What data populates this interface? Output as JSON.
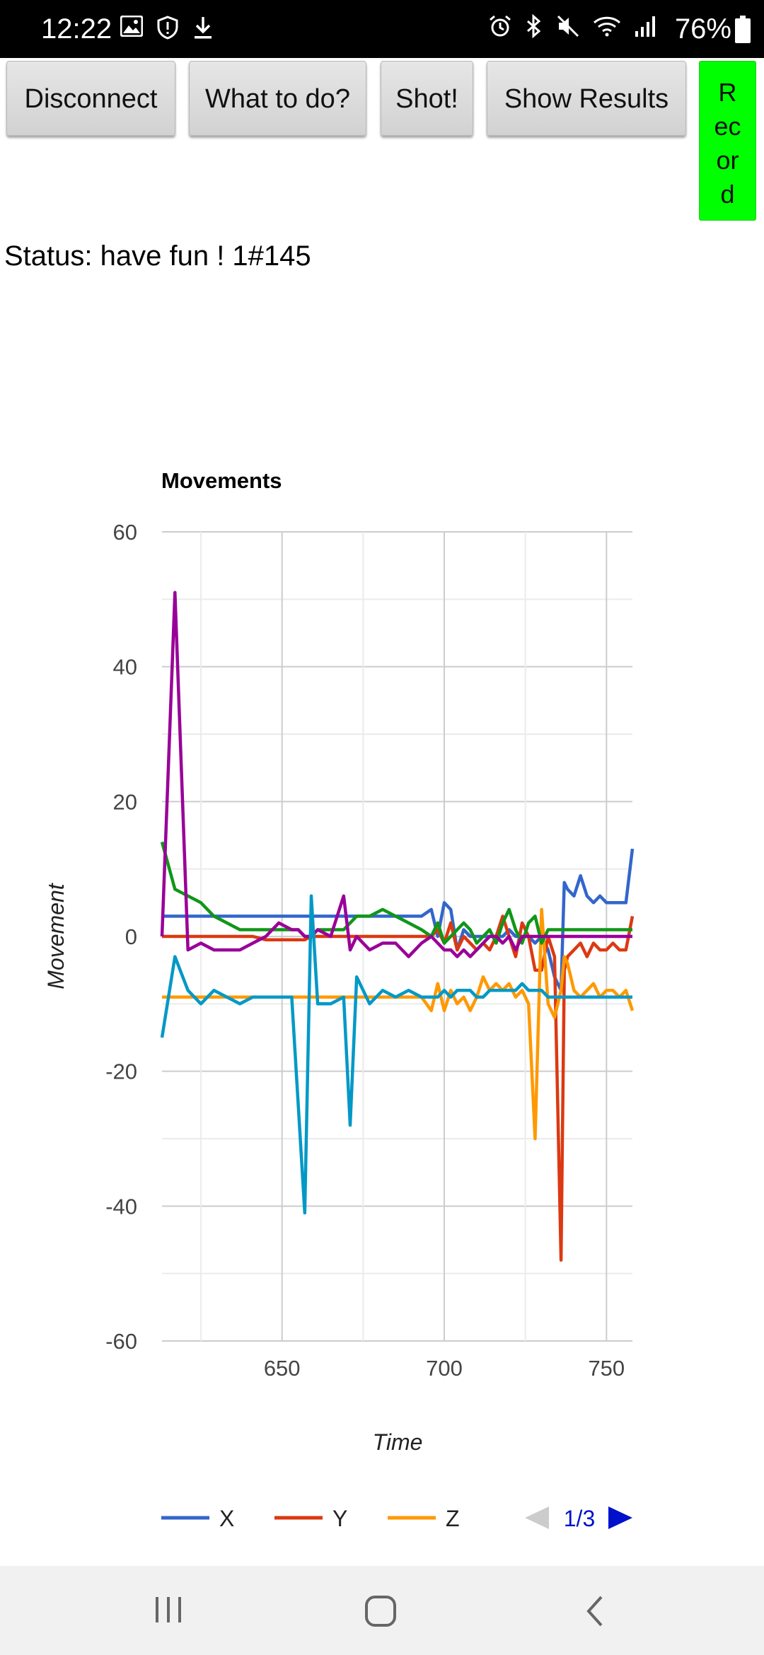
{
  "status_bar": {
    "time": "12:22",
    "battery": "76%",
    "left_icons": [
      "image-icon",
      "shield-icon",
      "download-icon"
    ],
    "right_icons": [
      "alarm-icon",
      "bluetooth-icon",
      "mute-icon",
      "wifi-icon",
      "signal-icon",
      "battery-icon"
    ]
  },
  "toolbar": {
    "disconnect_label": "Disconnect",
    "whattodo_label": "What to do?",
    "shot_label": "Shot!",
    "results_label": "Show Results",
    "record_label": "R\nec\nor\nd",
    "record_color": "#00ff00"
  },
  "status": {
    "text": "Status: have fun ! 1#145"
  },
  "chart_data": {
    "type": "line",
    "title": "Movements",
    "xlabel": "Time",
    "ylabel": "Movement",
    "xlim": [
      613,
      758
    ],
    "ylim": [
      -60,
      60
    ],
    "x_ticks": [
      650,
      700,
      750
    ],
    "y_ticks": [
      60,
      40,
      20,
      0,
      -20,
      -40,
      -60
    ],
    "grid": true,
    "legend": {
      "position": "bottom",
      "visible_entries": [
        "X",
        "Y",
        "Z"
      ],
      "page": "1/3"
    },
    "x": [
      613,
      617,
      621,
      625,
      629,
      633,
      637,
      641,
      645,
      649,
      653,
      655,
      657,
      659,
      661,
      665,
      669,
      671,
      673,
      677,
      681,
      685,
      689,
      693,
      696,
      698,
      700,
      702,
      704,
      706,
      708,
      710,
      712,
      714,
      716,
      718,
      720,
      722,
      724,
      726,
      728,
      730,
      732,
      734,
      736,
      737,
      738,
      740,
      742,
      744,
      746,
      748,
      750,
      752,
      754,
      756,
      758
    ],
    "series": [
      {
        "name": "X",
        "color": "#3366cc",
        "values": [
          3,
          3,
          3,
          3,
          3,
          3,
          3,
          3,
          3,
          3,
          3,
          3,
          3,
          3,
          3,
          3,
          3,
          3,
          3,
          3,
          3,
          3,
          3,
          3,
          4,
          0,
          5,
          4,
          -2,
          1,
          0,
          0,
          0,
          0,
          0,
          0,
          1,
          0,
          0,
          0,
          -1,
          0,
          -2,
          -6,
          -8,
          8,
          7,
          6,
          9,
          6,
          5,
          6,
          5,
          5,
          5,
          5,
          13
        ]
      },
      {
        "name": "Y",
        "color": "#dc3912",
        "values": [
          0,
          0,
          0,
          0,
          0,
          0,
          0,
          0,
          -0.5,
          -0.5,
          -0.5,
          -0.5,
          -0.5,
          0,
          0,
          0,
          0,
          0,
          0,
          0,
          0,
          0,
          0,
          0,
          0,
          1,
          -1,
          2,
          -2,
          0,
          -1,
          -2,
          -1,
          -2,
          0,
          3,
          0,
          -3,
          2,
          0,
          -5,
          -5,
          0,
          -3,
          -48,
          -5,
          -3,
          -2,
          -1,
          -3,
          -1,
          -2,
          -2,
          -1,
          -2,
          -2,
          3
        ]
      },
      {
        "name": "Z",
        "color": "#ff9900",
        "values": [
          -9,
          -9,
          -9,
          -9,
          -9,
          -9,
          -9,
          -9,
          -9,
          -9,
          -9,
          -9,
          -9,
          -9,
          -9,
          -9,
          -9,
          -9,
          -9,
          -9,
          -9,
          -9,
          -9,
          -9,
          -11,
          -7,
          -11,
          -8,
          -10,
          -9,
          -11,
          -9,
          -6,
          -8,
          -7,
          -8,
          -7,
          -9,
          -8,
          -10,
          -30,
          4,
          -10,
          -12,
          -8,
          -3,
          -4,
          -8,
          -9,
          -8,
          -7,
          -9,
          -8,
          -8,
          -9,
          -8,
          -11
        ]
      },
      {
        "name": "",
        "color": "#109618",
        "values": [
          14,
          7,
          6,
          5,
          3,
          2,
          1,
          1,
          1,
          1,
          1,
          1,
          0,
          0,
          1,
          1,
          1,
          2,
          3,
          3,
          4,
          3,
          2,
          1,
          0,
          2,
          -1,
          0,
          1,
          2,
          1,
          -1,
          0,
          1,
          -1,
          2,
          4,
          1,
          -1,
          2,
          3,
          -1,
          1,
          1,
          1,
          1,
          1,
          1,
          1,
          1,
          1,
          1,
          1,
          1,
          1,
          1,
          1
        ]
      },
      {
        "name": "",
        "color": "#990099",
        "values": [
          0,
          51,
          -2,
          -1,
          -2,
          -2,
          -2,
          -1,
          0,
          2,
          1,
          1,
          0,
          0,
          1,
          0,
          6,
          -2,
          0,
          -2,
          -1,
          -1,
          -3,
          -1,
          0,
          -1,
          -2,
          -2,
          -3,
          -2,
          -3,
          -2,
          -1,
          0,
          0,
          -1,
          0,
          -2,
          0,
          0,
          0,
          0,
          0,
          0,
          0,
          0,
          0,
          0,
          0,
          0,
          0,
          0,
          0,
          0,
          0,
          0,
          0
        ]
      },
      {
        "name": "",
        "color": "#0099c6",
        "values": [
          -15,
          -3,
          -8,
          -10,
          -8,
          -9,
          -10,
          -9,
          -9,
          -9,
          -9,
          -25,
          -41,
          6,
          -10,
          -10,
          -9,
          -28,
          -6,
          -10,
          -8,
          -9,
          -8,
          -9,
          -9,
          -9,
          -8,
          -9,
          -8,
          -8,
          -8,
          -9,
          -9,
          -8,
          -8,
          -8,
          -8,
          -8,
          -7,
          -8,
          -8,
          -8,
          -9,
          -9,
          -9,
          -9,
          -9,
          -9,
          -9,
          -9,
          -9,
          -9,
          -9,
          -9,
          -9,
          -9,
          -9
        ]
      }
    ]
  },
  "nav_bar": {
    "buttons": [
      "recents-icon",
      "home-icon",
      "back-icon"
    ]
  }
}
